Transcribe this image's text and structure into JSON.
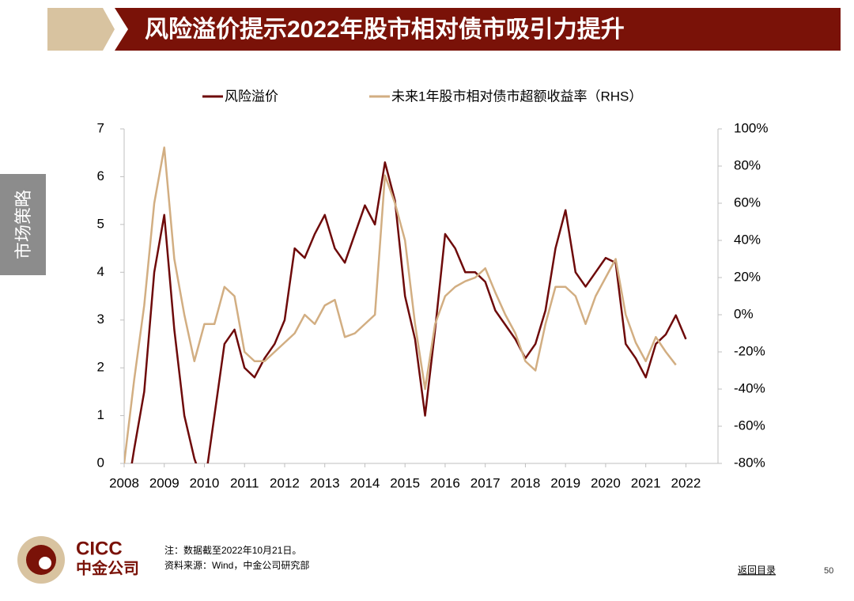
{
  "header": {
    "title": "风险溢价提示2022年股市相对债市吸引力提升"
  },
  "side_tab": "市场策略",
  "chart_data": {
    "type": "line",
    "x": [
      2008.0,
      2008.25,
      2008.5,
      2008.75,
      2009.0,
      2009.25,
      2009.5,
      2009.75,
      2010.0,
      2010.25,
      2010.5,
      2010.75,
      2011.0,
      2011.25,
      2011.5,
      2011.75,
      2012.0,
      2012.25,
      2012.5,
      2012.75,
      2013.0,
      2013.25,
      2013.5,
      2013.75,
      2014.0,
      2014.25,
      2014.5,
      2014.75,
      2015.0,
      2015.25,
      2015.5,
      2015.75,
      2016.0,
      2016.25,
      2016.5,
      2016.75,
      2017.0,
      2017.25,
      2017.5,
      2017.75,
      2018.0,
      2018.25,
      2018.5,
      2018.75,
      2019.0,
      2019.25,
      2019.5,
      2019.75,
      2020.0,
      2020.25,
      2020.5,
      2020.75,
      2021.0,
      2021.25,
      2021.5,
      2021.75,
      2022.0
    ],
    "series": [
      {
        "name": "风险溢价",
        "color": "#6e0a0a",
        "axis": "y",
        "values": [
          -1.0,
          0.3,
          1.5,
          4.0,
          5.2,
          2.8,
          1.0,
          0.1,
          -0.5,
          1.0,
          2.5,
          2.8,
          2.0,
          1.8,
          2.2,
          2.5,
          3.0,
          4.5,
          4.3,
          4.8,
          5.2,
          4.5,
          4.2,
          4.8,
          5.4,
          5.0,
          6.3,
          5.5,
          3.5,
          2.6,
          1.0,
          2.8,
          4.8,
          4.5,
          4.0,
          4.0,
          3.8,
          3.2,
          2.9,
          2.6,
          2.2,
          2.5,
          3.2,
          4.5,
          5.3,
          4.0,
          3.7,
          4.0,
          4.3,
          4.2,
          2.5,
          2.2,
          1.8,
          2.5,
          2.7,
          3.1,
          2.6
        ]
      },
      {
        "name": "未来1年股市相对债市超额收益率（RHS）",
        "color": "#d2ae82",
        "axis": "y2",
        "values": [
          -80,
          -35,
          5,
          60,
          90,
          30,
          0,
          -25,
          -5,
          -5,
          15,
          10,
          -20,
          -25,
          -25,
          -20,
          -15,
          -10,
          0,
          -5,
          5,
          8,
          -12,
          -10,
          -5,
          0,
          75,
          60,
          40,
          -5,
          -40,
          -5,
          10,
          15,
          18,
          20,
          25,
          12,
          0,
          -10,
          -25,
          -30,
          -5,
          15,
          15,
          10,
          -5,
          10,
          20,
          30,
          0,
          -15,
          -25,
          -12,
          -20,
          -27,
          null
        ]
      }
    ],
    "xlim": [
      2008,
      2022.8
    ],
    "xticks": [
      2008,
      2009,
      2010,
      2011,
      2012,
      2013,
      2014,
      2015,
      2016,
      2017,
      2018,
      2019,
      2020,
      2021,
      2022
    ],
    "ylim": [
      0,
      7
    ],
    "yticks": [
      0,
      1,
      2,
      3,
      4,
      5,
      6,
      7
    ],
    "y2lim": [
      -80,
      100
    ],
    "y2ticks": [
      {
        "value": -80,
        "label": "-80%"
      },
      {
        "value": -60,
        "label": "-60%"
      },
      {
        "value": -40,
        "label": "-40%"
      },
      {
        "value": -20,
        "label": "-20%"
      },
      {
        "value": 0,
        "label": "0%"
      },
      {
        "value": 20,
        "label": "20%"
      },
      {
        "value": 40,
        "label": "40%"
      },
      {
        "value": 60,
        "label": "60%"
      },
      {
        "value": 80,
        "label": "80%"
      },
      {
        "value": 100,
        "label": "100%"
      }
    ],
    "legend": "top",
    "grid": false
  },
  "footer": {
    "logo_en": "CICC",
    "logo_cn": "中金公司",
    "note": "注：数据截至2022年10月21日。",
    "source": "资料来源：Wind，中金公司研究部",
    "nav": "返回目录",
    "page": "50"
  }
}
